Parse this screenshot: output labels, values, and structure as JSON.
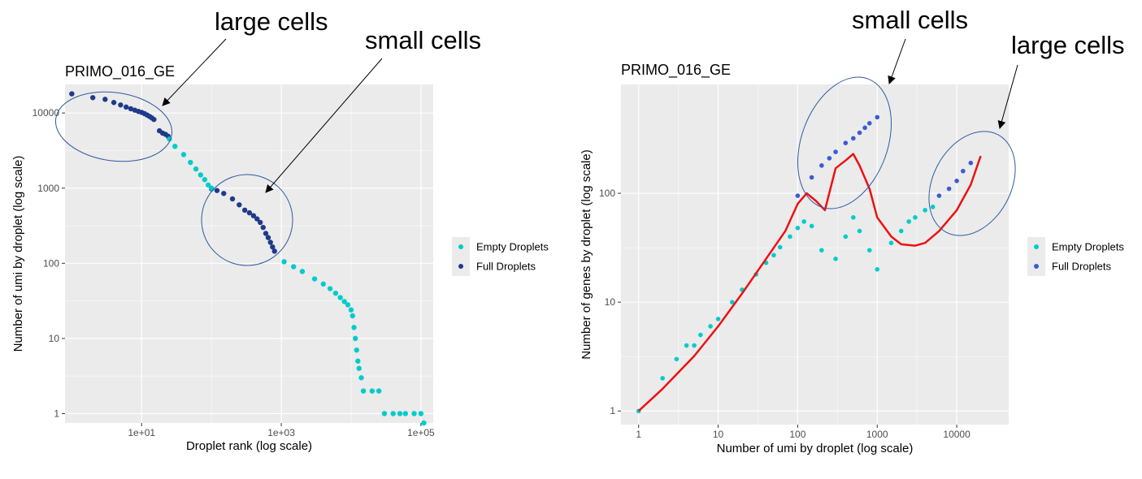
{
  "colors": {
    "empty": "#00cccc",
    "full_left": "#1f3a8a",
    "full_right": "#3b5bd6",
    "smooth": "#ee1111",
    "panel_bg": "#ebebeb",
    "grid": "#ffffff",
    "ellipse": "#2f5aa0"
  },
  "chart_data": [
    {
      "type": "scatter",
      "title": "PRIMO_016_GE",
      "xlabel": "Droplet rank (log scale)",
      "ylabel": "Number of umi by droplet (log scale)",
      "x_scale": "log",
      "y_scale": "log",
      "xlim": [
        0.8,
        150000
      ],
      "ylim": [
        0.75,
        24000
      ],
      "x_ticks": [
        {
          "value": 10,
          "label": "1e+01"
        },
        {
          "value": 1000,
          "label": "1e+03"
        },
        {
          "value": 100000,
          "label": "1e+05"
        }
      ],
      "y_ticks": [
        {
          "value": 1,
          "label": "1"
        },
        {
          "value": 10,
          "label": "10"
        },
        {
          "value": 100,
          "label": "100"
        },
        {
          "value": 1000,
          "label": "1000"
        },
        {
          "value": 10000,
          "label": "10000"
        }
      ],
      "grid": true,
      "legend": {
        "position": "right",
        "entries": [
          "Empty Droplets",
          "Full Droplets"
        ]
      },
      "series": [
        {
          "name": "Full Droplets",
          "x": [
            1,
            2,
            3,
            4,
            5,
            6,
            7,
            8,
            9,
            10,
            11,
            12,
            13,
            14,
            15,
            18,
            20,
            22,
            24,
            100,
            120,
            150,
            200,
            250,
            300,
            350,
            400,
            450,
            500,
            550,
            600,
            650,
            700,
            750,
            800
          ],
          "y": [
            18000,
            16000,
            15200,
            13800,
            12800,
            12000,
            11400,
            10900,
            10500,
            10200,
            9800,
            9400,
            9000,
            8600,
            8200,
            5800,
            5400,
            5200,
            4900,
            980,
            930,
            850,
            720,
            600,
            510,
            470,
            430,
            390,
            350,
            300,
            250,
            220,
            190,
            165,
            145
          ]
        },
        {
          "name": "Empty Droplets",
          "x": [
            25,
            30,
            40,
            50,
            60,
            70,
            80,
            90,
            100,
            1100,
            1500,
            2000,
            3000,
            4000,
            5000,
            6000,
            7000,
            8000,
            9000,
            10000,
            10500,
            11000,
            11500,
            12000,
            12500,
            13000,
            14000,
            15000,
            20000,
            25000,
            30000,
            40000,
            50000,
            60000,
            80000,
            100000,
            110000
          ],
          "y": [
            4500,
            3600,
            2800,
            2200,
            1800,
            1500,
            1300,
            1100,
            1000,
            105,
            90,
            78,
            62,
            53,
            46,
            40,
            35,
            31,
            28,
            24,
            20,
            14,
            10,
            7,
            5,
            4,
            3,
            2,
            2,
            2,
            1,
            1,
            1,
            1,
            1,
            1,
            0.75
          ]
        }
      ],
      "annotations": [
        "large cells",
        "small cells"
      ]
    },
    {
      "type": "scatter",
      "title": "PRIMO_016_GE",
      "xlabel": "Number of umi by droplet (log scale)",
      "ylabel": "Number of genes by droplet (log scale)",
      "x_scale": "log",
      "y_scale": "log",
      "xlim": [
        0.6,
        45000
      ],
      "ylim": [
        0.75,
        1000
      ],
      "x_ticks": [
        {
          "value": 1,
          "label": "1"
        },
        {
          "value": 10,
          "label": "10"
        },
        {
          "value": 100,
          "label": "100"
        },
        {
          "value": 1000,
          "label": "1000"
        },
        {
          "value": 10000,
          "label": "10000"
        }
      ],
      "y_ticks": [
        {
          "value": 1,
          "label": "1"
        },
        {
          "value": 10,
          "label": "10"
        },
        {
          "value": 100,
          "label": "100"
        }
      ],
      "grid": true,
      "legend": {
        "position": "right",
        "entries": [
          "Empty Droplets",
          "Full Droplets"
        ]
      },
      "series": [
        {
          "name": "Full Droplets",
          "x": [
            100,
            150,
            200,
            250,
            300,
            400,
            500,
            600,
            700,
            800,
            1000,
            6000,
            8000,
            10000,
            12000,
            15000
          ],
          "y": [
            95,
            140,
            180,
            210,
            240,
            290,
            320,
            360,
            400,
            440,
            500,
            95,
            110,
            130,
            160,
            190
          ]
        },
        {
          "name": "Empty Droplets",
          "x": [
            1,
            2,
            3,
            4,
            5,
            6,
            8,
            10,
            15,
            20,
            30,
            40,
            50,
            60,
            80,
            100,
            120,
            150,
            200,
            300,
            400,
            500,
            600,
            800,
            1000,
            1500,
            2000,
            2500,
            3000,
            4000,
            5000
          ],
          "y": [
            1,
            2,
            3,
            4,
            4,
            5,
            6,
            7,
            10,
            13,
            18,
            23,
            27,
            32,
            40,
            48,
            55,
            50,
            30,
            25,
            40,
            60,
            45,
            30,
            20,
            35,
            45,
            55,
            60,
            70,
            75
          ]
        }
      ],
      "smooth_line": {
        "x": [
          1,
          2,
          5,
          10,
          20,
          40,
          70,
          100,
          130,
          170,
          220,
          300,
          400,
          500,
          600,
          800,
          1000,
          1500,
          2000,
          3000,
          4000,
          6000,
          10000,
          15000,
          20000
        ],
        "y": [
          1,
          1.6,
          3.2,
          6,
          12,
          25,
          45,
          80,
          100,
          85,
          70,
          170,
          200,
          230,
          180,
          110,
          60,
          40,
          34,
          33,
          35,
          45,
          70,
          120,
          220
        ]
      },
      "annotations": [
        "small cells",
        "large cells"
      ]
    }
  ]
}
